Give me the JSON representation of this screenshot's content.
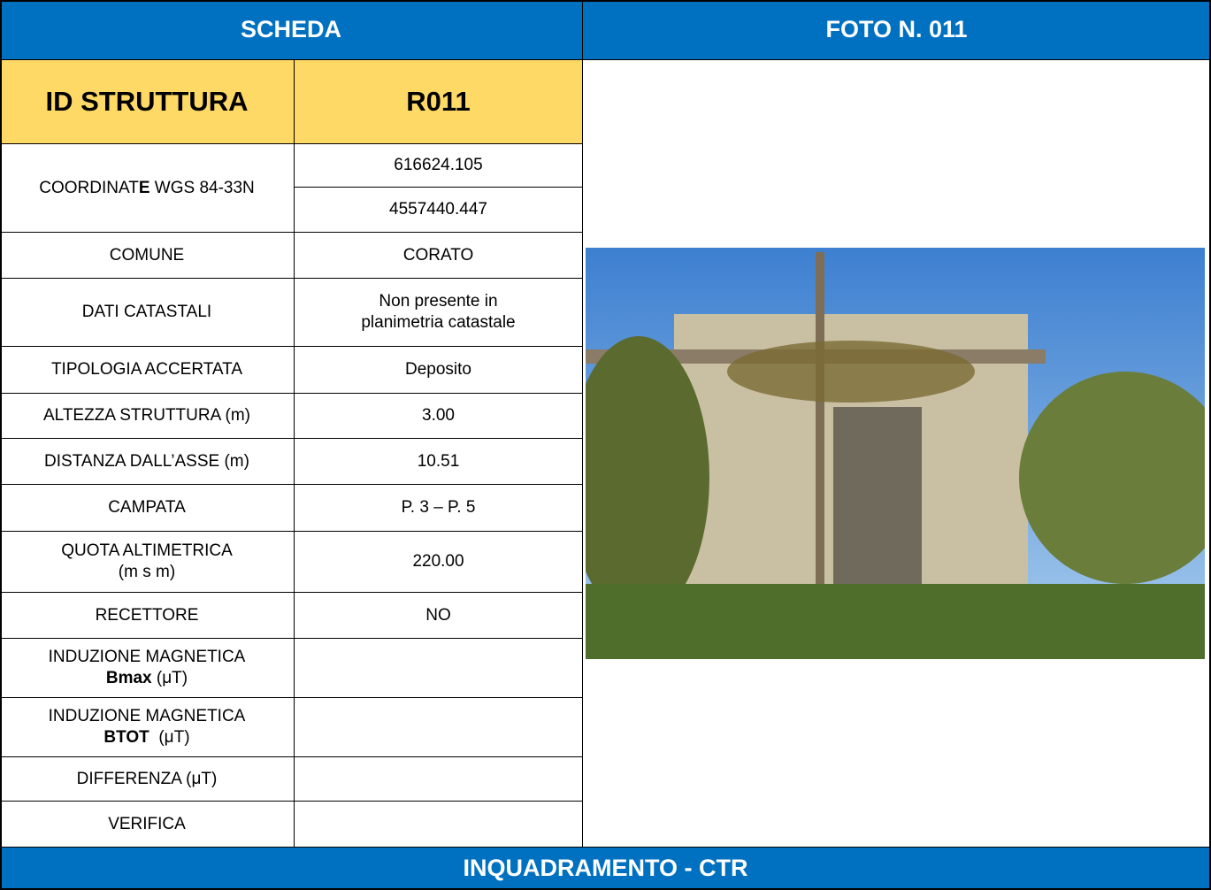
{
  "header": {
    "left": "SCHEDA",
    "right": "FOTO N. 011"
  },
  "id_row": {
    "label": "ID STRUTTURA",
    "value": "R011"
  },
  "coordinate": {
    "label": [
      "COORDINAT",
      "E",
      " WGS 84-33N"
    ],
    "values": [
      "616624.105",
      "4557440.447"
    ]
  },
  "rows": [
    {
      "label": "COMUNE",
      "value": "CORATO"
    },
    {
      "label": "DATI CATASTALI",
      "value": "Non presente in\nplanimetria catastale"
    },
    {
      "label": "TIPOLOGIA ACCERTATA",
      "value": "Deposito"
    },
    {
      "label": "ALTEZZA STRUTTURA (m)",
      "value": "3.00"
    },
    {
      "label": "DISTANZA DALL’ASSE (m)",
      "value": "10.51"
    },
    {
      "label": "CAMPATA",
      "value": "P. 3 – P. 5"
    },
    {
      "label": "QUOTA ALTIMETRICA\n(m s m)",
      "value": "220.00"
    },
    {
      "label": "RECETTORE",
      "value": "NO"
    }
  ],
  "measures": [
    {
      "label": [
        "INDUZIONE MAGNETICA\n",
        "Bmax",
        " (μT)"
      ]
    },
    {
      "label": [
        "INDUZIONE MAGNETICA\n",
        "BTOT",
        "  (μT)"
      ]
    },
    {
      "label": [
        "DIFFERENZA (μT)"
      ]
    },
    {
      "label": [
        "VERIFICA"
      ]
    }
  ],
  "footer": "INQUADRAMENTO - CTR"
}
